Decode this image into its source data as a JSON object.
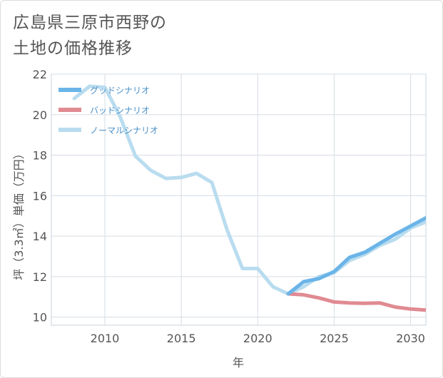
{
  "title": "広島県三原市西野の\n土地の価格推移",
  "chart_data": {
    "type": "line",
    "xlabel": "年",
    "ylabel": "坪（3.3㎡）単価（万円）",
    "xlim": [
      2006.5,
      2031
    ],
    "ylim": [
      9.6,
      22
    ],
    "xticks": [
      2010,
      2015,
      2020,
      2025,
      2030
    ],
    "yticks": [
      10,
      12,
      14,
      16,
      18,
      20,
      22
    ],
    "grid": true,
    "legend_position": "top-left",
    "series": [
      {
        "name": "グッドシナリオ",
        "color": "#6ab4e8",
        "x": [
          2022,
          2023,
          2024,
          2025,
          2026,
          2027,
          2028,
          2029,
          2030,
          2031
        ],
        "y": [
          11.15,
          11.75,
          11.9,
          12.25,
          12.95,
          13.2,
          13.65,
          14.1,
          14.5,
          14.9
        ]
      },
      {
        "name": "バッドシナリオ",
        "color": "#e08a92",
        "x": [
          2022,
          2023,
          2024,
          2025,
          2026,
          2027,
          2028,
          2029,
          2030,
          2031
        ],
        "y": [
          11.15,
          11.1,
          10.95,
          10.75,
          10.7,
          10.68,
          10.7,
          10.5,
          10.4,
          10.35
        ]
      },
      {
        "name": "ノーマルシナリオ",
        "color": "#b9dcef",
        "x": [
          2008,
          2009,
          2010,
          2011,
          2012,
          2013,
          2014,
          2015,
          2016,
          2017,
          2018,
          2019,
          2020,
          2021,
          2022,
          2023,
          2024,
          2025,
          2026,
          2027,
          2028,
          2029,
          2030,
          2031
        ],
        "y": [
          20.8,
          21.4,
          21.35,
          19.9,
          17.95,
          17.25,
          16.85,
          16.9,
          17.1,
          16.65,
          14.3,
          12.4,
          12.4,
          11.5,
          11.15,
          11.5,
          12.0,
          12.2,
          12.8,
          13.1,
          13.55,
          13.85,
          14.4,
          14.7
        ]
      }
    ]
  }
}
